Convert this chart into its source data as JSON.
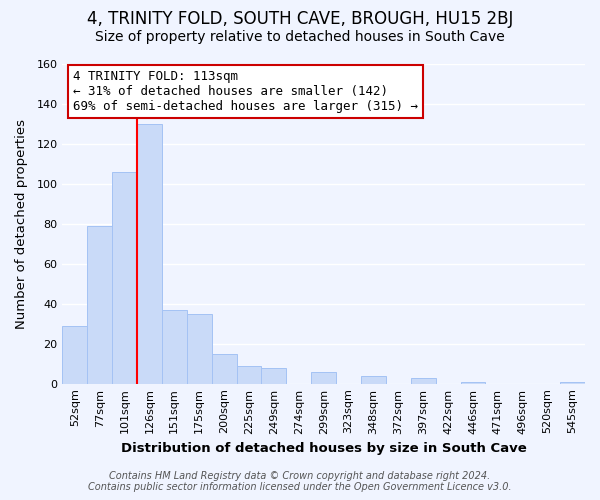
{
  "title": "4, TRINITY FOLD, SOUTH CAVE, BROUGH, HU15 2BJ",
  "subtitle": "Size of property relative to detached houses in South Cave",
  "xlabel": "Distribution of detached houses by size in South Cave",
  "ylabel": "Number of detached properties",
  "bar_labels": [
    "52sqm",
    "77sqm",
    "101sqm",
    "126sqm",
    "151sqm",
    "175sqm",
    "200sqm",
    "225sqm",
    "249sqm",
    "274sqm",
    "299sqm",
    "323sqm",
    "348sqm",
    "372sqm",
    "397sqm",
    "422sqm",
    "446sqm",
    "471sqm",
    "496sqm",
    "520sqm",
    "545sqm"
  ],
  "bar_values": [
    29,
    79,
    106,
    130,
    37,
    35,
    15,
    9,
    8,
    0,
    6,
    0,
    4,
    0,
    3,
    0,
    1,
    0,
    0,
    0,
    1
  ],
  "bar_color": "#c9daf8",
  "bar_edge_color": "#a4c2f4",
  "highlight_line_color": "red",
  "ylim": [
    0,
    160
  ],
  "yticks": [
    0,
    20,
    40,
    60,
    80,
    100,
    120,
    140,
    160
  ],
  "annotation_title": "4 TRINITY FOLD: 113sqm",
  "annotation_line1": "← 31% of detached houses are smaller (142)",
  "annotation_line2": "69% of semi-detached houses are larger (315) →",
  "annotation_box_color": "white",
  "annotation_box_edge": "#cc0000",
  "footer_line1": "Contains HM Land Registry data © Crown copyright and database right 2024.",
  "footer_line2": "Contains public sector information licensed under the Open Government Licence v3.0.",
  "background_color": "#f0f4ff",
  "plot_bg_color": "#f0f4ff",
  "grid_color": "white",
  "title_fontsize": 12,
  "subtitle_fontsize": 10,
  "axis_label_fontsize": 9.5,
  "tick_fontsize": 8,
  "footer_fontsize": 7,
  "annotation_fontsize": 9
}
